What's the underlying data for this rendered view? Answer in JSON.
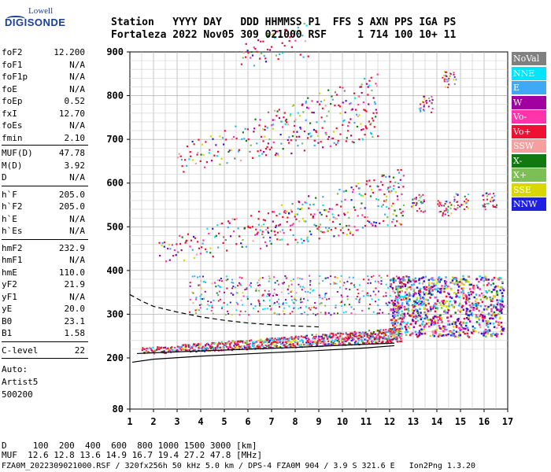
{
  "logo": {
    "line1": "Lowell",
    "line2": "DIGISONDE"
  },
  "header": {
    "row1": "Station   YYYY DAY   DDD HHMMSS P1  FFS S AXN PPS IGA PS",
    "row2": "Fortaleza 2022 Nov05 309 021000 RSF     1 714 100 10+ 11"
  },
  "params_group1": [
    {
      "label": "foF2",
      "value": "12.200"
    },
    {
      "label": "foF1",
      "value": "N/A"
    },
    {
      "label": "foF1p",
      "value": "N/A"
    },
    {
      "label": "foE",
      "value": "N/A"
    },
    {
      "label": "foEp",
      "value": "0.52"
    },
    {
      "label": "fxI",
      "value": "12.70"
    },
    {
      "label": "foEs",
      "value": "N/A"
    },
    {
      "label": "fmin",
      "value": "2.10"
    }
  ],
  "params_group2": [
    {
      "label": "MUF(D)",
      "value": "47.78"
    },
    {
      "label": "M(D)",
      "value": "3.92"
    },
    {
      "label": "D",
      "value": "N/A"
    }
  ],
  "params_group3": [
    {
      "label": "h`F",
      "value": "205.0"
    },
    {
      "label": "h`F2",
      "value": "205.0"
    },
    {
      "label": "h`E",
      "value": "N/A"
    },
    {
      "label": "h`Es",
      "value": "N/A"
    }
  ],
  "params_group4": [
    {
      "label": "hmF2",
      "value": "232.9"
    },
    {
      "label": "hmF1",
      "value": "N/A"
    },
    {
      "label": "hmE",
      "value": "110.0"
    },
    {
      "label": "yF2",
      "value": "21.9"
    },
    {
      "label": "yF1",
      "value": "N/A"
    },
    {
      "label": "yE",
      "value": "20.0"
    },
    {
      "label": "B0",
      "value": "23.1"
    },
    {
      "label": "B1",
      "value": "1.58"
    }
  ],
  "clevel": {
    "label": "C-level",
    "value": "22"
  },
  "auto": {
    "line1": "Auto:",
    "line2": "Artist5",
    "line3": "500200"
  },
  "legend": [
    {
      "label": "NoVal",
      "color": "#808080"
    },
    {
      "label": "NNE",
      "color": "#00e5ff"
    },
    {
      "label": "E",
      "color": "#3fa9f5"
    },
    {
      "label": "W",
      "color": "#a000a0"
    },
    {
      "label": "Vo-",
      "color": "#ff33aa"
    },
    {
      "label": "Vo+",
      "color": "#ee1133"
    },
    {
      "label": "SSW",
      "color": "#f4a0a0"
    },
    {
      "label": "X-",
      "color": "#107a10"
    },
    {
      "label": "X+",
      "color": "#7bbf55"
    },
    {
      "label": "SSE",
      "color": "#d8d800"
    },
    {
      "label": "NNW",
      "color": "#2020e0"
    }
  ],
  "footer": {
    "row1": "D     100  200  400  600  800 1000 1500 3000 [km]",
    "row2": "MUF  12.6 12.8 13.6 14.9 16.7 19.4 27.2 47.8 [MHz]",
    "row3": "FZA0M_2022309021000.RSF / 320fx256h 50 kHz 5.0 km / DPS-4 FZA0M 904 / 3.9 S 321.6 E   Ion2Png 1.3.20"
  },
  "chart_data": {
    "type": "scatter",
    "x_ticks": [
      "1",
      "2",
      "3",
      "4",
      "5",
      "6",
      "7",
      "8",
      "9",
      "10",
      "11",
      "12",
      "13",
      "14",
      "15",
      "16",
      "17"
    ],
    "y_ticks": [
      "80",
      "200",
      "300",
      "400",
      "500",
      "600",
      "700",
      "800",
      "900"
    ],
    "xlim": [
      1,
      17
    ],
    "ylim": [
      80,
      900
    ],
    "grid": true,
    "traces": [
      {
        "name": "o-trace F2",
        "color": "#ee1133",
        "f_start": 1.5,
        "f_end": 12.5,
        "h_start": 210,
        "h_end": 240
      },
      {
        "name": "2nd hop",
        "color": "#ee1133",
        "f_start": 2.2,
        "f_end": 12.5,
        "h_start": 415,
        "h_end": 520
      },
      {
        "name": "3rd hop",
        "color": "#ee1133",
        "f_start": 3.0,
        "f_end": 11.5,
        "h_start": 625,
        "h_end": 720
      },
      {
        "name": "4th hop",
        "color": "#ee1133",
        "f_start": 3.8,
        "f_end": 8.5,
        "h_start": 845,
        "h_end": 900
      }
    ]
  }
}
